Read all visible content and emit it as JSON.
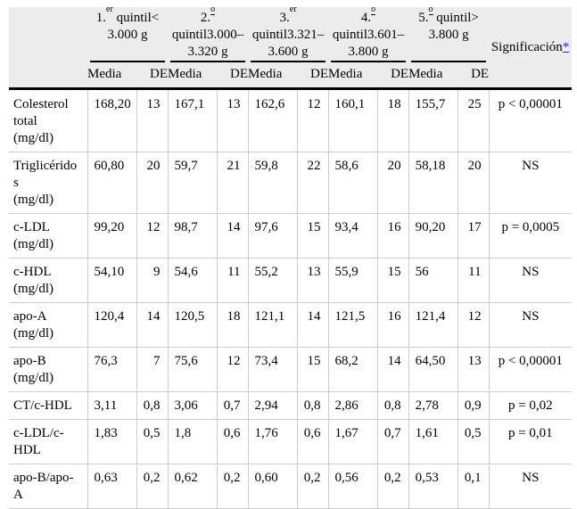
{
  "colors": {
    "header_bg": "#ececec",
    "grid": "#cccccc",
    "rule": "#000000",
    "link": "#2a2ad8",
    "text": "#000000"
  },
  "header": {
    "groups": [
      {
        "ord": "1.",
        "sup": "er",
        "tail": " quintil<",
        "lines": "3.000 g"
      },
      {
        "ord": "2.",
        "sup": "o",
        "tail": "",
        "lines": "quintil3.000–\n3.320 g"
      },
      {
        "ord": "3.",
        "sup": "er",
        "tail": "",
        "lines": "quintil3.321–\n3.600 g"
      },
      {
        "ord": "4.",
        "sup": "o",
        "tail": "",
        "lines": "quintil3.601–\n3.800 g"
      },
      {
        "ord": "5.",
        "sup": "o",
        "tail": " quintil>",
        "lines": "3.800 g"
      }
    ],
    "media_label": "Media",
    "de_label": "DE",
    "significance_label": "Significación",
    "significance_asterisk": "*"
  },
  "rows": [
    {
      "label": "Colesterol\ntotal\n(mg/dl)",
      "values": [
        [
          "168,20",
          "13"
        ],
        [
          "167,1",
          "13"
        ],
        [
          "162,6",
          "12"
        ],
        [
          "160,1",
          "18"
        ],
        [
          "155,7",
          "25"
        ]
      ],
      "significance": "p < 0,00001"
    },
    {
      "label": "Triglicéridos\n(mg/dl)",
      "values": [
        [
          "60,80",
          "20"
        ],
        [
          "59,7",
          "21"
        ],
        [
          "59,8",
          "22"
        ],
        [
          "58,6",
          "20"
        ],
        [
          "58,18",
          "20"
        ]
      ],
      "significance": "NS"
    },
    {
      "label": "c-LDL\n(mg/dl)",
      "values": [
        [
          "99,20",
          "12"
        ],
        [
          "98,7",
          "14"
        ],
        [
          "97,6",
          "15"
        ],
        [
          "93,4",
          "16"
        ],
        [
          "90,20",
          "17"
        ]
      ],
      "significance": "p = 0,0005"
    },
    {
      "label": "c-HDL\n(mg/dl)",
      "values": [
        [
          "54,10",
          "9"
        ],
        [
          "54,6",
          "11"
        ],
        [
          "55,2",
          "13"
        ],
        [
          "55,9",
          "15"
        ],
        [
          "56",
          "11"
        ]
      ],
      "significance": "NS"
    },
    {
      "label": "apo-A\n(mg/dl)",
      "values": [
        [
          "120,4",
          "14"
        ],
        [
          "120,5",
          "18"
        ],
        [
          "121,1",
          "14"
        ],
        [
          "121,5",
          "16"
        ],
        [
          "121,4",
          "12"
        ]
      ],
      "significance": "NS"
    },
    {
      "label": "apo-B\n(mg/dl)",
      "values": [
        [
          "76,3",
          "7"
        ],
        [
          "75,6",
          "12"
        ],
        [
          "73,4",
          "15"
        ],
        [
          "68,2",
          "14"
        ],
        [
          "64,50",
          "13"
        ]
      ],
      "significance": "p < 0,00001"
    },
    {
      "label": "CT/c-HDL",
      "values": [
        [
          "3,11",
          "0,8"
        ],
        [
          "3,06",
          "0,7"
        ],
        [
          "2,94",
          "0,8"
        ],
        [
          "2,86",
          "0,8"
        ],
        [
          "2,78",
          "0,9"
        ]
      ],
      "significance": "p = 0,02"
    },
    {
      "label": "c-LDL/c-\nHDL",
      "values": [
        [
          "1,83",
          "0,5"
        ],
        [
          "1,8",
          "0,6"
        ],
        [
          "1,76",
          "0,6"
        ],
        [
          "1,67",
          "0,7"
        ],
        [
          "1,61",
          "0,5"
        ]
      ],
      "significance": "p = 0,01"
    },
    {
      "label": "apo-B/apo-\nA",
      "values": [
        [
          "0,63",
          "0,2"
        ],
        [
          "0,62",
          "0,2"
        ],
        [
          "0,60",
          "0,2"
        ],
        [
          "0,56",
          "0,2"
        ],
        [
          "0,53",
          "0,1"
        ]
      ],
      "significance": "NS"
    }
  ]
}
